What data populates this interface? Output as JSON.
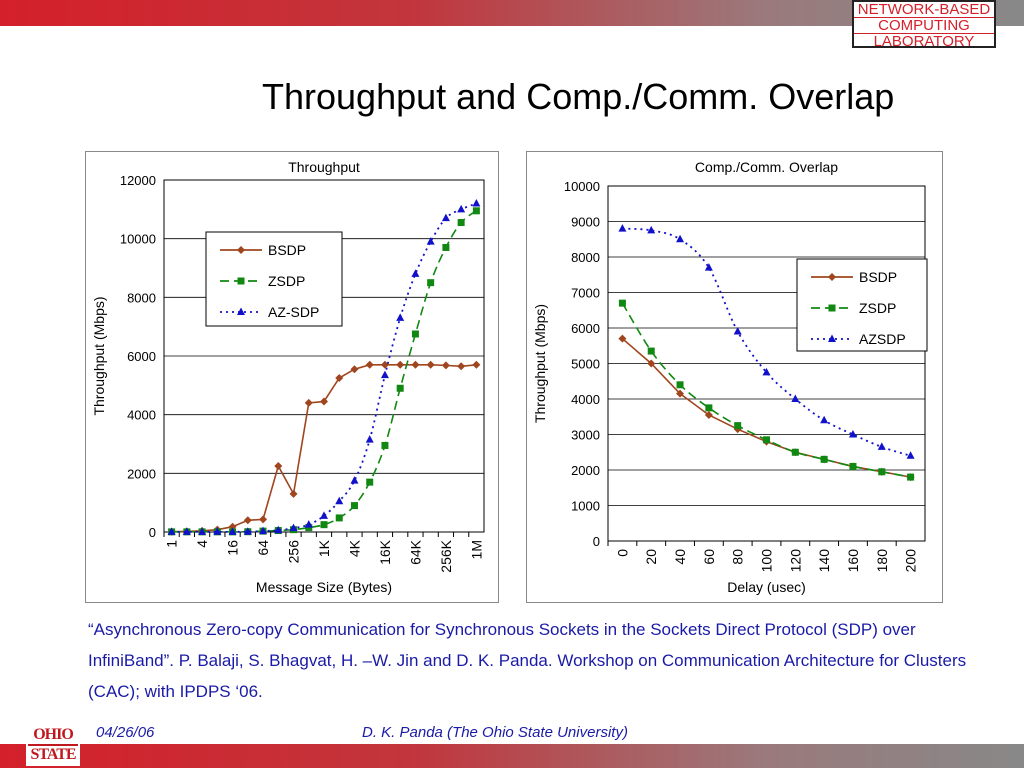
{
  "slide": {
    "title": "Throughput and Comp./Comm. Overlap",
    "lab_logo_lines": [
      "NETWORK-BASED",
      "COMPUTING",
      "LABORATORY"
    ],
    "citation": "“Asynchronous Zero-copy Communication for Synchronous Sockets in the Sockets Direct Protocol (SDP) over InfiniBand”. P. Balaji, S. Bhagvat, H. –W. Jin and D. K. Panda. Workshop on Communication Architecture for Clusters (CAC); with IPDPS ‘06.",
    "footer_date": "04/26/06",
    "footer_author": "D. K. Panda (The Ohio State University)",
    "osu_logo_lines": [
      "OHIO",
      "STATE"
    ]
  },
  "colors": {
    "accent": "#d4202a",
    "text_blue": "#1a1aa8",
    "bsdp": "#a0461e",
    "zsdp": "#118811",
    "azsdp": "#1111cc"
  },
  "chart_data": [
    {
      "type": "line",
      "title": "Throughput",
      "xlabel": "Message Size (Bytes)",
      "ylabel": "Throughput (Mbps)",
      "categories": [
        "1",
        "2",
        "4",
        "8",
        "16",
        "32",
        "64",
        "128",
        "256",
        "512",
        "1K",
        "2K",
        "4K",
        "8K",
        "16K",
        "32K",
        "64K",
        "128K",
        "256K",
        "512K",
        "1M"
      ],
      "tick_labels": [
        "1",
        "4",
        "16",
        "64",
        "256",
        "1K",
        "4K",
        "16K",
        "64K",
        "256K",
        "1M"
      ],
      "ylim": [
        0,
        12000
      ],
      "yticks": [
        0,
        2000,
        4000,
        6000,
        8000,
        10000,
        12000
      ],
      "grid": true,
      "legend_position": "top-left",
      "series": [
        {
          "name": "BSDP",
          "marker": "diamond",
          "dash": "solid",
          "values": [
            10,
            20,
            40,
            80,
            180,
            400,
            430,
            2250,
            1300,
            4400,
            4450,
            5250,
            5550,
            5700,
            5700,
            5700,
            5700,
            5700,
            5680,
            5650,
            5700
          ]
        },
        {
          "name": "ZSDP",
          "marker": "square",
          "dash": "dashed",
          "values": [
            5,
            5,
            5,
            5,
            5,
            10,
            30,
            50,
            80,
            150,
            250,
            480,
            900,
            1700,
            2950,
            4900,
            6750,
            8500,
            9700,
            10550,
            10950
          ]
        },
        {
          "name": "AZ-SDP",
          "marker": "triangle",
          "dash": "dotted",
          "values": [
            5,
            5,
            5,
            5,
            5,
            10,
            30,
            60,
            130,
            250,
            550,
            1050,
            1750,
            3150,
            5350,
            7300,
            8800,
            9900,
            10700,
            11000,
            11200
          ]
        }
      ]
    },
    {
      "type": "line",
      "title": "Comp./Comm. Overlap",
      "xlabel": "Delay (usec)",
      "ylabel": "Throughput (Mbps)",
      "categories": [
        "0",
        "20",
        "40",
        "60",
        "80",
        "100",
        "120",
        "140",
        "160",
        "180",
        "200"
      ],
      "ylim": [
        0,
        10000
      ],
      "yticks": [
        0,
        1000,
        2000,
        3000,
        4000,
        5000,
        6000,
        7000,
        8000,
        9000,
        10000
      ],
      "grid": true,
      "legend_position": "top-right",
      "series": [
        {
          "name": "BSDP",
          "marker": "diamond",
          "dash": "solid",
          "values": [
            5700,
            5000,
            4150,
            3550,
            3150,
            2800,
            2500,
            2300,
            2100,
            1950,
            1800
          ]
        },
        {
          "name": "ZSDP",
          "marker": "square",
          "dash": "dashed",
          "values": [
            6700,
            5350,
            4400,
            3750,
            3250,
            2850,
            2500,
            2300,
            2100,
            1950,
            1800
          ]
        },
        {
          "name": "AZSDP",
          "marker": "triangle",
          "dash": "dotted",
          "values": [
            8800,
            8750,
            8500,
            7700,
            5900,
            4750,
            4000,
            3400,
            3000,
            2650,
            2400
          ]
        }
      ]
    }
  ]
}
